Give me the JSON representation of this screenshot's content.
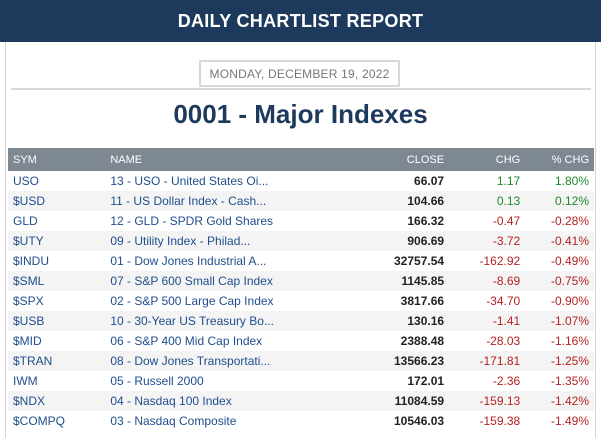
{
  "header": {
    "title": "DAILY CHARTLIST REPORT"
  },
  "report": {
    "date": "MONDAY, DECEMBER 19, 2022",
    "title": "0001 - Major Indexes"
  },
  "table": {
    "columns": [
      "SYM",
      "NAME",
      "CLOSE",
      "CHG",
      "% CHG"
    ],
    "rows": [
      {
        "sym": "USO",
        "name": "13 - USO - United States Oi...",
        "close": "66.07",
        "chg": "1.17",
        "pct": "1.80%",
        "dir": "pos"
      },
      {
        "sym": "$USD",
        "name": "11 - US Dollar Index - Cash...",
        "close": "104.66",
        "chg": "0.13",
        "pct": "0.12%",
        "dir": "pos"
      },
      {
        "sym": "GLD",
        "name": "12 - GLD - SPDR Gold Shares",
        "close": "166.32",
        "chg": "-0.47",
        "pct": "-0.28%",
        "dir": "neg"
      },
      {
        "sym": "$UTY",
        "name": "09 - Utility Index - Philad...",
        "close": "906.69",
        "chg": "-3.72",
        "pct": "-0.41%",
        "dir": "neg"
      },
      {
        "sym": "$INDU",
        "name": "01 - Dow Jones Industrial A...",
        "close": "32757.54",
        "chg": "-162.92",
        "pct": "-0.49%",
        "dir": "neg"
      },
      {
        "sym": "$SML",
        "name": "07 - S&P 600 Small Cap Index",
        "close": "1145.85",
        "chg": "-8.69",
        "pct": "-0.75%",
        "dir": "neg"
      },
      {
        "sym": "$SPX",
        "name": "02 - S&P 500 Large Cap Index",
        "close": "3817.66",
        "chg": "-34.70",
        "pct": "-0.90%",
        "dir": "neg"
      },
      {
        "sym": "$USB",
        "name": "10 - 30-Year US Treasury Bo...",
        "close": "130.16",
        "chg": "-1.41",
        "pct": "-1.07%",
        "dir": "neg"
      },
      {
        "sym": "$MID",
        "name": "06 - S&P 400 Mid Cap Index",
        "close": "2388.48",
        "chg": "-28.03",
        "pct": "-1.16%",
        "dir": "neg"
      },
      {
        "sym": "$TRAN",
        "name": "08 - Dow Jones Transportati...",
        "close": "13566.23",
        "chg": "-171.81",
        "pct": "-1.25%",
        "dir": "neg"
      },
      {
        "sym": "IWM",
        "name": "05 - Russell 2000",
        "close": "172.01",
        "chg": "-2.36",
        "pct": "-1.35%",
        "dir": "neg"
      },
      {
        "sym": "$NDX",
        "name": "04 - Nasdaq 100 Index",
        "close": "11084.59",
        "chg": "-159.13",
        "pct": "-1.42%",
        "dir": "neg"
      },
      {
        "sym": "$COMPQ",
        "name": "03 - Nasdaq Composite",
        "close": "10546.03",
        "chg": "-159.38",
        "pct": "-1.49%",
        "dir": "neg"
      }
    ]
  },
  "colors": {
    "header_bg": "#1d3a5c",
    "positive": "#1e8a2a",
    "negative": "#b42222",
    "link": "#1f4e8c"
  }
}
